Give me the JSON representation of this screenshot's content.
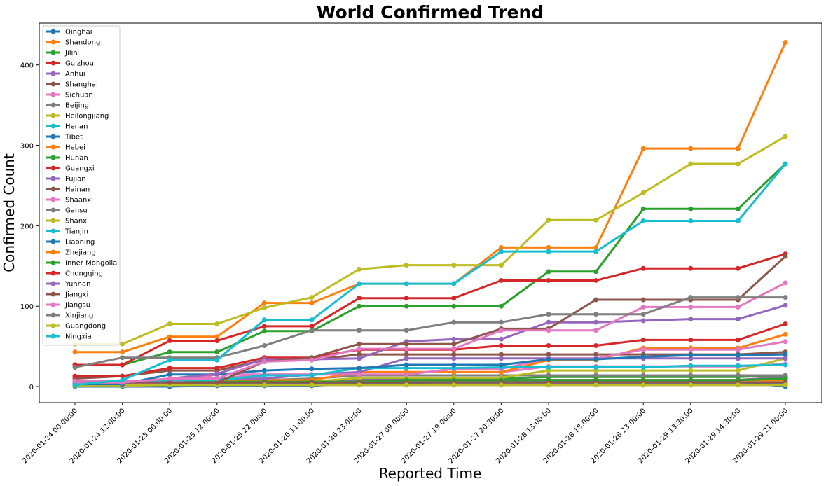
{
  "chart_data": {
    "type": "line",
    "title": "World Confirmed Trend",
    "xlabel": "Reported Time",
    "ylabel": "Confirmed Count",
    "categories": [
      "2020-01-24 00:00:00",
      "2020-01-24 12:00:00",
      "2020-01-25 00:00:00",
      "2020-01-25 12:00:00",
      "2020-01-25 22:00:00",
      "2020-01-26 11:00:00",
      "2020-01-26 23:00:00",
      "2020-01-27 09:00:00",
      "2020-01-27 19:00:00",
      "2020-01-27 20:30:00",
      "2020-01-28 13:00:00",
      "2020-01-28 18:00:00",
      "2020-01-28 23:00:00",
      "2020-01-29 13:30:00",
      "2020-01-29 14:30:00",
      "2020-01-29 21:00:00"
    ],
    "yticks": [
      0,
      100,
      200,
      300,
      400
    ],
    "ylim": [
      -20,
      452
    ],
    "grid": false,
    "legend_position": "top-left",
    "series": [
      {
        "name": "Qinghai",
        "color": "#1f77b4",
        "values": [
          0,
          0,
          0,
          1,
          1,
          1,
          4,
          4,
          6,
          6,
          6,
          6,
          6,
          6,
          6,
          0
        ]
      },
      {
        "name": "Shandong",
        "color": "#ff7f0e",
        "values": [
          3,
          4,
          3,
          3,
          3,
          3,
          5,
          6,
          6,
          6,
          6,
          6,
          6,
          6,
          6,
          8
        ]
      },
      {
        "name": "Jilin",
        "color": "#2ca02c",
        "values": [
          1,
          1,
          3,
          4,
          4,
          4,
          10,
          10,
          10,
          10,
          12,
          12,
          12,
          12,
          12,
          14
        ]
      },
      {
        "name": "Guizhou",
        "color": "#d62728",
        "values": [
          3,
          3,
          3,
          3,
          3,
          3,
          8,
          8,
          8,
          8,
          8,
          8,
          8,
          8,
          8,
          12
        ]
      },
      {
        "name": "Anhui",
        "color": "#9467bd",
        "values": [
          3,
          3,
          3,
          3,
          3,
          3,
          8,
          8,
          8,
          8,
          8,
          8,
          8,
          8,
          8,
          12
        ]
      },
      {
        "name": "Shanghai",
        "color": "#8c564b",
        "values": [
          10,
          13,
          20,
          20,
          33,
          33,
          40,
          40,
          40,
          40,
          40,
          40,
          40,
          40,
          40,
          43
        ]
      },
      {
        "name": "Sichuan",
        "color": "#e377c2",
        "values": [
          7,
          7,
          7,
          10,
          15,
          15,
          18,
          18,
          18,
          18,
          25,
          25,
          25,
          25,
          25,
          28
        ]
      },
      {
        "name": "Beijing",
        "color": "#7f7f7f",
        "values": [
          4,
          4,
          4,
          8,
          8,
          10,
          14,
          14,
          14,
          14,
          14,
          14,
          14,
          14,
          14,
          14
        ]
      },
      {
        "name": "Heilongjiang",
        "color": "#bcbd22",
        "values": [
          1,
          1,
          2,
          4,
          4,
          6,
          11,
          11,
          11,
          11,
          20,
          20,
          20,
          20,
          20,
          35
        ]
      },
      {
        "name": "Henan",
        "color": "#17becf",
        "values": [
          5,
          5,
          5,
          5,
          5,
          5,
          5,
          5,
          5,
          5,
          5,
          5,
          5,
          5,
          5,
          5
        ]
      },
      {
        "name": "Tibet",
        "color": "#1f77b4",
        "values": [
          5,
          5,
          5,
          5,
          5,
          5,
          5,
          5,
          5,
          5,
          5,
          5,
          5,
          5,
          5,
          5
        ]
      },
      {
        "name": "Hebei",
        "color": "#ff7f0e",
        "values": [
          2,
          2,
          2,
          8,
          8,
          8,
          18,
          18,
          18,
          18,
          33,
          33,
          48,
          48,
          48,
          65
        ]
      },
      {
        "name": "Hunan",
        "color": "#2ca02c",
        "values": [
          2,
          2,
          6,
          6,
          6,
          6,
          6,
          8,
          8,
          8,
          8,
          8,
          8,
          8,
          8,
          10
        ]
      },
      {
        "name": "Guangxi",
        "color": "#d62728",
        "values": [
          13,
          13,
          23,
          23,
          36,
          36,
          46,
          46,
          46,
          51,
          51,
          51,
          58,
          58,
          58,
          78
        ]
      },
      {
        "name": "Fujian",
        "color": "#9467bd",
        "values": [
          5,
          5,
          10,
          10,
          10,
          15,
          18,
          35,
          35,
          35,
          35,
          35,
          35,
          35,
          35,
          35
        ]
      },
      {
        "name": "Hainan",
        "color": "#8c564b",
        "values": [
          5,
          5,
          5,
          5,
          5,
          5,
          5,
          5,
          5,
          5,
          5,
          5,
          5,
          5,
          5,
          5
        ]
      },
      {
        "name": "Shaanxi",
        "color": "#e377c2",
        "values": [
          3,
          3,
          5,
          15,
          15,
          15,
          15,
          15,
          22,
          22,
          35,
          35,
          46,
          46,
          46,
          56
        ]
      },
      {
        "name": "Gansu",
        "color": "#7f7f7f",
        "values": [
          2,
          2,
          2,
          2,
          2,
          2,
          2,
          2,
          2,
          2,
          2,
          2,
          2,
          2,
          2,
          2
        ]
      },
      {
        "name": "Shanxi",
        "color": "#bcbd22",
        "values": [
          2,
          2,
          2,
          2,
          2,
          2,
          2,
          2,
          2,
          2,
          2,
          2,
          2,
          2,
          2,
          2
        ]
      },
      {
        "name": "Tianjin",
        "color": "#17becf",
        "values": [
          5,
          5,
          8,
          8,
          14,
          14,
          23,
          23,
          23,
          24,
          24,
          24,
          24,
          26,
          26,
          27
        ]
      },
      {
        "name": "Liaoning",
        "color": "#1f77b4",
        "values": [
          3,
          3,
          15,
          15,
          20,
          22,
          23,
          27,
          27,
          27,
          34,
          34,
          37,
          39,
          39,
          40
        ]
      },
      {
        "name": "Zhejiang",
        "color": "#ff7f0e",
        "values": [
          43,
          43,
          62,
          62,
          104,
          104,
          128,
          128,
          128,
          173,
          173,
          173,
          296,
          296,
          296,
          428
        ]
      },
      {
        "name": "Inner Mongolia",
        "color": "#2ca02c",
        "values": [
          27,
          27,
          43,
          43,
          69,
          69,
          100,
          100,
          100,
          100,
          143,
          143,
          221,
          221,
          221,
          277
        ]
      },
      {
        "name": "Chongqing",
        "color": "#d62728",
        "values": [
          27,
          27,
          57,
          57,
          75,
          75,
          110,
          110,
          110,
          132,
          132,
          132,
          147,
          147,
          147,
          165
        ]
      },
      {
        "name": "Yunnan",
        "color": "#9467bd",
        "values": [
          5,
          5,
          10,
          16,
          34,
          34,
          35,
          56,
          59,
          59,
          80,
          80,
          82,
          84,
          84,
          101
        ]
      },
      {
        "name": "Jiangxi",
        "color": "#8c564b",
        "values": [
          5,
          5,
          5,
          5,
          31,
          36,
          53,
          53,
          53,
          72,
          72,
          108,
          108,
          108,
          108,
          162
        ]
      },
      {
        "name": "Jiangsu",
        "color": "#e377c2",
        "values": [
          5,
          5,
          10,
          10,
          31,
          33,
          47,
          47,
          47,
          70,
          70,
          70,
          99,
          99,
          99,
          129
        ]
      },
      {
        "name": "Xinjiang",
        "color": "#7f7f7f",
        "values": [
          24,
          36,
          36,
          36,
          51,
          70,
          70,
          70,
          80,
          80,
          90,
          90,
          90,
          111,
          111,
          111
        ]
      },
      {
        "name": "Guangdong",
        "color": "#bcbd22",
        "values": [
          53,
          53,
          78,
          78,
          98,
          111,
          146,
          151,
          151,
          151,
          207,
          207,
          241,
          277,
          277,
          311
        ]
      },
      {
        "name": "Ningxia",
        "color": "#17becf",
        "values": [
          2,
          8,
          33,
          33,
          83,
          83,
          128,
          128,
          128,
          168,
          168,
          168,
          206,
          206,
          206,
          277
        ]
      }
    ]
  }
}
